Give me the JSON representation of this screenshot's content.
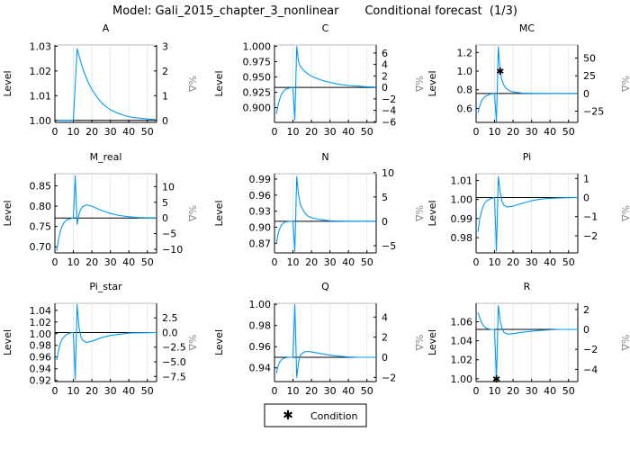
{
  "title": "Model: Gali_2015_chapter_3_nonlinear       Conditional forecast  (1/3)",
  "legend": {
    "marker": "star",
    "label": "Condition"
  },
  "colors": {
    "series": "#009af9",
    "steady_state": "#000000",
    "condition": "#000000"
  },
  "chart_data": [
    {
      "type": "line",
      "title": "A",
      "ylabel": "Level",
      "ylabel_right": "%Δ",
      "xlim": [
        0,
        55
      ],
      "ylim": [
        0.9992,
        1.0305
      ],
      "steady_state": 1.0,
      "x_ticks": [
        0,
        10,
        20,
        30,
        40,
        50
      ],
      "y_ticks": [
        "1.00",
        "1.01",
        "1.02",
        "1.03"
      ],
      "pct_ticks": [
        "0",
        "1",
        "2",
        "3"
      ],
      "x": [
        1,
        10,
        12,
        14,
        16,
        18,
        20,
        23,
        26,
        30,
        34,
        38,
        42,
        46,
        50,
        55
      ],
      "y": [
        1.0,
        1.0,
        1.029,
        1.0235,
        1.019,
        1.0154,
        1.0125,
        1.0091,
        1.0066,
        1.0043,
        1.0029,
        1.0019,
        1.0012,
        1.0009,
        1.0006,
        1.0003
      ],
      "conditions": []
    },
    {
      "type": "line",
      "title": "C",
      "ylabel": "Level",
      "ylabel_right": "%Δ",
      "xlim": [
        0,
        55
      ],
      "ylim": [
        0.876,
        1.002
      ],
      "steady_state": 0.933,
      "x_ticks": [
        0,
        10,
        20,
        30,
        40,
        50
      ],
      "y_ticks": [
        "0.900",
        "0.925",
        "0.950",
        "0.975",
        "1.000"
      ],
      "pct_ticks": [
        "−6",
        "−4",
        "−2",
        "0",
        "2",
        "4",
        "6"
      ],
      "x": [
        1,
        2,
        3,
        4,
        5,
        6,
        8,
        10,
        11,
        12,
        13,
        14,
        16,
        18,
        20,
        25,
        30,
        35,
        40,
        45,
        50,
        55
      ],
      "y": [
        0.89,
        0.905,
        0.916,
        0.923,
        0.927,
        0.93,
        0.932,
        0.933,
        0.88,
        1.0,
        0.975,
        0.967,
        0.96,
        0.955,
        0.951,
        0.945,
        0.941,
        0.938,
        0.936,
        0.935,
        0.934,
        0.9335
      ],
      "conditions": []
    },
    {
      "type": "line",
      "title": "MC",
      "ylabel": "Level",
      "ylabel_right": "%Δ",
      "xlim": [
        0,
        55
      ],
      "ylim": [
        0.45,
        1.28
      ],
      "steady_state": 0.76,
      "x_ticks": [
        0,
        10,
        20,
        30,
        40,
        50
      ],
      "y_ticks": [
        "0.6",
        "0.8",
        "1.0",
        "1.2"
      ],
      "pct_ticks": [
        "−25",
        "0",
        "25",
        "50"
      ],
      "x": [
        1,
        2,
        3,
        4,
        5,
        6,
        8,
        10,
        11,
        12,
        13,
        14,
        15,
        16,
        18,
        20,
        25,
        30,
        40,
        55
      ],
      "y": [
        0.55,
        0.63,
        0.68,
        0.71,
        0.73,
        0.74,
        0.755,
        0.758,
        0.46,
        1.26,
        1.0,
        0.9,
        0.85,
        0.82,
        0.79,
        0.777,
        0.765,
        0.762,
        0.76,
        0.76
      ],
      "conditions": [
        {
          "x": 13,
          "y": 1.0
        }
      ]
    },
    {
      "type": "line",
      "title": "M_real",
      "ylabel": "Level",
      "ylabel_right": "%Δ",
      "xlim": [
        0,
        55
      ],
      "ylim": [
        0.685,
        0.88
      ],
      "steady_state": 0.771,
      "x_ticks": [
        0,
        10,
        20,
        30,
        40,
        50
      ],
      "y_ticks": [
        "0.70",
        "0.75",
        "0.80",
        "0.85"
      ],
      "pct_ticks": [
        "−10",
        "−5",
        "0",
        "5",
        "10"
      ],
      "x": [
        1,
        2,
        3,
        4,
        5,
        6,
        8,
        10,
        11,
        12,
        13,
        14,
        15,
        17,
        20,
        25,
        30,
        35,
        40,
        45,
        55
      ],
      "y": [
        0.69,
        0.72,
        0.74,
        0.752,
        0.76,
        0.765,
        0.769,
        0.771,
        0.875,
        0.755,
        0.78,
        0.792,
        0.799,
        0.803,
        0.8,
        0.79,
        0.782,
        0.777,
        0.774,
        0.772,
        0.771
      ],
      "conditions": []
    },
    {
      "type": "line",
      "title": "N",
      "ylabel": "Level",
      "ylabel_right": "%Δ",
      "xlim": [
        0,
        55
      ],
      "ylim": [
        0.852,
        1.0
      ],
      "steady_state": 0.911,
      "x_ticks": [
        0,
        10,
        20,
        30,
        40,
        50
      ],
      "y_ticks": [
        "0.87",
        "0.90",
        "0.93",
        "0.96",
        "0.99"
      ],
      "pct_ticks": [
        "−5",
        "0",
        "5",
        "10"
      ],
      "x": [
        1,
        2,
        3,
        4,
        5,
        6,
        8,
        10,
        11,
        12,
        13,
        14,
        16,
        18,
        20,
        25,
        30,
        40,
        55
      ],
      "y": [
        0.87,
        0.888,
        0.899,
        0.905,
        0.908,
        0.91,
        0.911,
        0.911,
        0.855,
        0.995,
        0.96,
        0.942,
        0.928,
        0.921,
        0.918,
        0.914,
        0.912,
        0.911,
        0.911
      ],
      "conditions": []
    },
    {
      "type": "line",
      "title": "Pi",
      "ylabel": "Level",
      "ylabel_right": "%Δ",
      "xlim": [
        0,
        55
      ],
      "ylim": [
        0.972,
        1.0135
      ],
      "steady_state": 1.001,
      "x_ticks": [
        0,
        10,
        20,
        30,
        40,
        50
      ],
      "y_ticks": [
        "0.98",
        "0.99",
        "1.00",
        "1.01"
      ],
      "pct_ticks": [
        "−2",
        "−1",
        "0",
        "1"
      ],
      "x": [
        1,
        2,
        3,
        4,
        5,
        6,
        8,
        10,
        11,
        12,
        13,
        14,
        15,
        17,
        20,
        25,
        30,
        35,
        40,
        45,
        55
      ],
      "y": [
        0.983,
        0.99,
        0.994,
        0.997,
        0.9985,
        0.9995,
        1.0005,
        1.001,
        0.973,
        1.012,
        1.004,
        0.999,
        0.997,
        0.996,
        0.9965,
        0.998,
        0.9993,
        1.0002,
        1.0006,
        1.0008,
        1.001
      ],
      "conditions": []
    },
    {
      "type": "line",
      "title": "Pi_star",
      "ylabel": "Level",
      "ylabel_right": "%Δ",
      "xlim": [
        0,
        55
      ],
      "ylim": [
        0.918,
        1.052
      ],
      "steady_state": 1.002,
      "x_ticks": [
        0,
        10,
        20,
        30,
        40,
        50
      ],
      "y_ticks": [
        "0.92",
        "0.94",
        "0.96",
        "0.98",
        "1.00",
        "1.02",
        "1.04"
      ],
      "pct_ticks": [
        "−7.5",
        "−5.0",
        "−2.5",
        "0.0",
        "2.5"
      ],
      "x": [
        1,
        2,
        3,
        4,
        5,
        6,
        8,
        10,
        11,
        12,
        13,
        14,
        15,
        17,
        20,
        25,
        30,
        35,
        40,
        45,
        55
      ],
      "y": [
        0.955,
        0.972,
        0.984,
        0.991,
        0.995,
        0.998,
        1.001,
        1.002,
        0.922,
        1.05,
        1.012,
        0.995,
        0.989,
        0.985,
        0.987,
        0.993,
        0.997,
        0.999,
        1.001,
        1.0015,
        1.002
      ],
      "conditions": []
    },
    {
      "type": "line",
      "title": "Q",
      "ylabel": "Level",
      "ylabel_right": "%Δ",
      "xlim": [
        0,
        55
      ],
      "ylim": [
        0.927,
        1.001
      ],
      "steady_state": 0.95,
      "x_ticks": [
        0,
        10,
        20,
        30,
        40,
        50
      ],
      "y_ticks": [
        "0.94",
        "0.96",
        "0.98",
        "1.00"
      ],
      "pct_ticks": [
        "−2",
        "0",
        "2",
        "4"
      ],
      "x": [
        1,
        2,
        3,
        4,
        5,
        6,
        8,
        10,
        11,
        12,
        13,
        14,
        16,
        18,
        20,
        25,
        30,
        35,
        40,
        45,
        55
      ],
      "y": [
        0.935,
        0.942,
        0.946,
        0.948,
        0.949,
        0.9495,
        0.95,
        0.95,
        1.0,
        0.931,
        0.945,
        0.952,
        0.955,
        0.9555,
        0.955,
        0.9535,
        0.952,
        0.951,
        0.9503,
        0.95,
        0.95
      ],
      "conditions": []
    },
    {
      "type": "line",
      "title": "R",
      "ylabel": "Level",
      "ylabel_right": "%Δ",
      "xlim": [
        0,
        55
      ],
      "ylim": [
        0.997,
        1.0795
      ],
      "steady_state": 1.052,
      "x_ticks": [
        0,
        10,
        20,
        30,
        40,
        50
      ],
      "y_ticks": [
        "1.00",
        "1.02",
        "1.04",
        "1.06"
      ],
      "pct_ticks": [
        "−4",
        "−2",
        "0",
        "2"
      ],
      "x": [
        1,
        2,
        3,
        4,
        5,
        6,
        8,
        10,
        11,
        12,
        13,
        14,
        15,
        17,
        20,
        25,
        30,
        35,
        40,
        45,
        55
      ],
      "y": [
        1.07,
        1.064,
        1.059,
        1.056,
        1.054,
        1.053,
        1.052,
        1.052,
        0.998,
        1.077,
        1.062,
        1.053,
        1.049,
        1.047,
        1.0475,
        1.049,
        1.05,
        1.051,
        1.0515,
        1.052,
        1.052
      ],
      "conditions": [
        {
          "x": 11,
          "y": 1.0
        }
      ]
    }
  ]
}
